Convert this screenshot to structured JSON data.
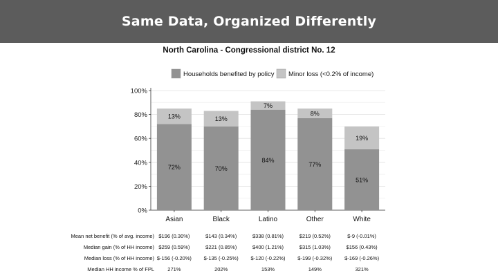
{
  "header": {
    "title": "Same Data, Organized Differently"
  },
  "chart_data": {
    "type": "bar",
    "stacked": true,
    "title": "North Carolina - Congressional district No. 12",
    "categories": [
      "Asian",
      "Black",
      "Latino",
      "Other",
      "White"
    ],
    "series": [
      {
        "name": "Households benefited by policy",
        "values": [
          72,
          70,
          84,
          77,
          51
        ],
        "labels": [
          "72%",
          "70%",
          "84%",
          "77%",
          "51%"
        ],
        "color": "#929292"
      },
      {
        "name": "Minor loss (<0.2% of income)",
        "values": [
          13,
          13,
          7,
          8,
          19
        ],
        "labels": [
          "13%",
          "13%",
          "7%",
          "8%",
          "19%"
        ],
        "color": "#c4c4c4"
      }
    ],
    "ylim": [
      0,
      100
    ],
    "yticks": [
      "0%",
      "20%",
      "40%",
      "60%",
      "80%",
      "100%"
    ],
    "legend_position": "top",
    "grid": true
  },
  "table": {
    "rows": [
      {
        "label": "Mean net benefit (% of avg. income)",
        "cells": [
          "$196 (0.30%)",
          "$143 (0.34%)",
          "$338 (0.81%)",
          "$219 (0.52%)",
          "$-9 (-0.01%)"
        ]
      },
      {
        "label": "Median gain (% of HH income)",
        "cells": [
          "$259 (0.59%)",
          "$221 (0.85%)",
          "$400 (1.21%)",
          "$315 (1.03%)",
          "$156 (0.43%)"
        ]
      },
      {
        "label": "Median loss (% of HH income)",
        "cells": [
          "$-156 (-0.20%)",
          "$-135 (-0.25%)",
          "$-120 (-0.22%)",
          "$-199 (-0.32%)",
          "$-169 (-0.26%)"
        ]
      },
      {
        "label": "Median HH income % of FPL",
        "cells": [
          "271%",
          "202%",
          "153%",
          "149%",
          "321%"
        ]
      }
    ]
  }
}
